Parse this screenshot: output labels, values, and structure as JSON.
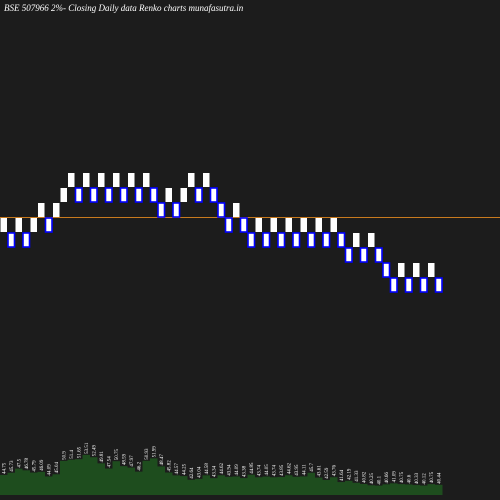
{
  "chart_data": {
    "type": "renko",
    "title": "BSE 507966  2%-  Closing Daily data  Renko  charts munafasutra.in",
    "values": [
      0,
      -1,
      0,
      -1,
      0,
      1,
      0,
      1,
      2,
      3,
      2,
      3,
      2,
      3,
      2,
      3,
      2,
      3,
      2,
      3,
      2,
      1,
      2,
      1,
      2,
      3,
      2,
      3,
      2,
      1,
      0,
      1,
      0,
      -1,
      0,
      -1,
      0,
      -1,
      0,
      -1,
      0,
      -1,
      0,
      -1,
      0,
      -1,
      -2,
      -1,
      -2,
      -1,
      -2,
      -3,
      -4,
      -3,
      -4,
      -3,
      -4,
      -3,
      -4
    ],
    "up_color": "#ffffff",
    "down_color": "#0000ff",
    "ylim": [
      -12,
      15
    ],
    "reference_line": {
      "value": 0.5,
      "color": "#c87a1e"
    },
    "volume": {
      "color": "#1e4d1e",
      "ylim": [
        36,
        60
      ],
      "values": [
        44.75,
        45.73,
        47.5,
        46.78,
        45.79,
        46.09,
        44.09,
        45.04,
        50.9,
        51.4,
        51.65,
        53.51,
        52.49,
        49.81,
        47.54,
        50.75,
        48.59,
        47.97,
        46.2,
        50.93,
        51.99,
        48.47,
        45.82,
        44.57,
        44.25,
        42.64,
        43.04,
        44.58,
        43.34,
        44.62,
        43.94,
        44.09,
        43.38,
        44.85,
        43.74,
        44.05,
        43.74,
        43.85,
        44.62,
        43.95,
        44.11,
        45.7,
        43.61,
        42.59,
        43.76,
        41.64,
        42.19,
        41.33,
        40.82,
        40.25,
        40.1,
        40.66,
        41.09,
        40.75,
        40.6,
        40.33,
        40.12,
        40.75,
        40.44
      ]
    }
  }
}
